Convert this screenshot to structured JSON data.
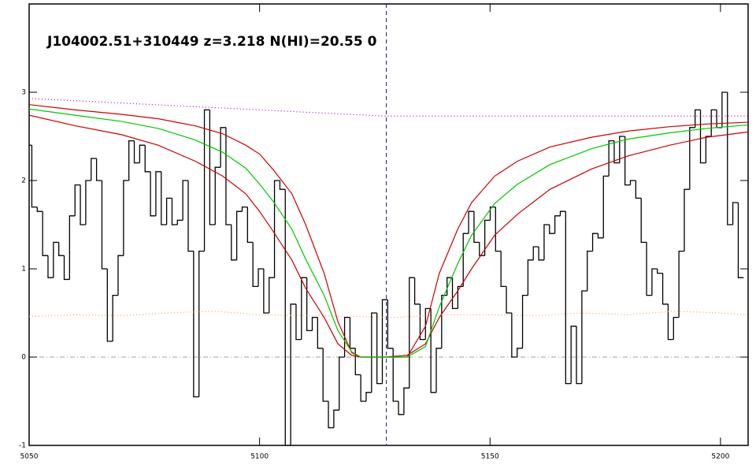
{
  "chart_data": {
    "type": "line",
    "title": "J104002.51+310449 z=3.218 N(HI)=20.55 0",
    "xlim": [
      5050,
      5206
    ],
    "ylim": [
      -1,
      4
    ],
    "xticks": [
      5050,
      5100,
      5150,
      5200
    ],
    "yticks": [
      -1,
      0,
      1,
      2,
      3
    ],
    "vline_x": 5127.5,
    "vline_color": "#1010b0",
    "hline_y": 0,
    "hline_color": "#a0a0a0",
    "series": [
      {
        "style": "step",
        "color": "#000000",
        "x": [
          5050,
          5051.17,
          5052.34,
          5053.51,
          5054.68,
          5055.85,
          5057.02,
          5058.19,
          5059.36,
          5060.53,
          5061.7,
          5062.87,
          5064.04,
          5065.21,
          5066.38,
          5067.55,
          5068.72,
          5069.89,
          5071.06,
          5072.23,
          5073.4,
          5074.57,
          5075.74,
          5076.91,
          5078.08,
          5079.25,
          5080.42,
          5081.59,
          5082.76,
          5083.93,
          5085.1,
          5086.27,
          5087.44,
          5088.61,
          5089.78,
          5090.95,
          5092.12,
          5093.29,
          5094.46,
          5095.63,
          5096.8,
          5097.97,
          5099.14,
          5100.31,
          5101.48,
          5102.65,
          5103.82,
          5104.99,
          5106.16,
          5107.33,
          5108.5,
          5109.67,
          5110.84,
          5112.01,
          5113.18,
          5114.35,
          5115.52,
          5116.69,
          5117.86,
          5119.03,
          5120.2,
          5121.37,
          5122.54,
          5123.71,
          5124.88,
          5126.05,
          5127.22,
          5128.39,
          5129.56,
          5130.73,
          5131.9,
          5133.07,
          5134.24,
          5135.41,
          5136.58,
          5137.75,
          5138.92,
          5140.09,
          5141.26,
          5142.43,
          5143.6,
          5144.77,
          5145.94,
          5147.11,
          5148.28,
          5149.45,
          5150.62,
          5151.79,
          5152.96,
          5154.13,
          5155.3,
          5156.47,
          5157.64,
          5158.81,
          5159.98,
          5161.15,
          5162.32,
          5163.49,
          5164.66,
          5165.83,
          5167,
          5168.17,
          5169.34,
          5170.51,
          5171.68,
          5172.85,
          5174.02,
          5175.19,
          5176.36,
          5177.53,
          5178.7,
          5179.87,
          5181.04,
          5182.21,
          5183.38,
          5184.55,
          5185.72,
          5186.89,
          5188.06,
          5189.23,
          5190.4,
          5191.57,
          5192.74,
          5193.91,
          5195.08,
          5196.25,
          5197.42,
          5198.59,
          5199.76,
          5200.93,
          5202.1,
          5203.27,
          5204.44
        ],
        "values": [
          2.4,
          1.7,
          1.65,
          1.15,
          0.9,
          1.3,
          1.15,
          0.88,
          1.6,
          1.95,
          1.5,
          2.0,
          2.25,
          2.0,
          1.0,
          0.18,
          0.7,
          1.15,
          2.0,
          2.45,
          2.2,
          2.4,
          2.1,
          1.6,
          2.1,
          1.5,
          1.8,
          1.5,
          1.55,
          2.0,
          1.2,
          -0.45,
          1.2,
          2.8,
          1.5,
          2.15,
          2.6,
          1.5,
          1.1,
          1.65,
          1.7,
          1.3,
          0.8,
          1.0,
          0.5,
          0.9,
          2.0,
          1.9,
          -1.0,
          0.6,
          0.2,
          0.9,
          0.3,
          0.45,
          0.1,
          -0.5,
          -0.8,
          -0.6,
          0.0,
          0.45,
          0.1,
          -0.2,
          -0.5,
          -0.4,
          0.5,
          -0.3,
          0.65,
          0.1,
          -0.5,
          -0.65,
          -0.35,
          0.9,
          0.6,
          0.2,
          0.55,
          -0.4,
          0.1,
          0.7,
          0.9,
          0.55,
          0.8,
          1.4,
          1.65,
          1.3,
          1.15,
          1.55,
          1.7,
          1.2,
          0.8,
          0.5,
          0.0,
          0.1,
          0.7,
          1.1,
          1.25,
          1.1,
          1.5,
          1.4,
          1.6,
          1.65,
          -0.3,
          0.35,
          -0.3,
          0.75,
          1.2,
          1.4,
          1.35,
          2.05,
          2.45,
          2.2,
          2.5,
          1.95,
          2.0,
          1.8,
          1.3,
          0.7,
          1.0,
          0.95,
          0.6,
          0.2,
          0.45,
          1.2,
          1.9,
          2.6,
          2.8,
          2.2,
          2.5,
          2.8,
          2.6,
          3.0,
          1.5,
          1.75,
          0.9
        ]
      },
      {
        "style": "dotted",
        "color": "#f0a060",
        "x": [
          5050,
          5060,
          5070,
          5080,
          5090,
          5100,
          5110,
          5120,
          5130,
          5140,
          5150,
          5160,
          5170,
          5180,
          5190,
          5200,
          5206
        ],
        "values": [
          0.46,
          0.48,
          0.47,
          0.5,
          0.52,
          0.48,
          0.47,
          0.46,
          0.45,
          0.48,
          0.48,
          0.47,
          0.5,
          0.48,
          0.52,
          0.5,
          0.48
        ]
      },
      {
        "style": "dotted",
        "color": "#b000c8",
        "x": [
          5050,
          5127,
          5206
        ],
        "values": [
          2.93,
          2.73,
          2.73
        ]
      },
      {
        "style": "solid",
        "color": "#cc0000",
        "x": [
          5050,
          5060,
          5070,
          5078,
          5086,
          5092,
          5097,
          5100,
          5103,
          5107,
          5110,
          5114,
          5117,
          5120,
          5122,
          5127,
          5132,
          5136,
          5139,
          5143,
          5146,
          5151,
          5156,
          5163,
          5172,
          5180,
          5189,
          5197,
          5206
        ],
        "values": [
          2.86,
          2.8,
          2.75,
          2.7,
          2.62,
          2.53,
          2.4,
          2.3,
          2.12,
          1.85,
          1.5,
          0.95,
          0.4,
          0.05,
          0,
          0,
          0,
          0.35,
          0.95,
          1.45,
          1.75,
          2.05,
          2.22,
          2.38,
          2.49,
          2.56,
          2.61,
          2.64,
          2.66
        ]
      },
      {
        "style": "solid",
        "color": "#cc0000",
        "x": [
          5050,
          5060,
          5070,
          5078,
          5086,
          5092,
          5097,
          5100,
          5103,
          5107,
          5110,
          5114,
          5117,
          5120,
          5122,
          5127,
          5132,
          5136,
          5139,
          5143,
          5146,
          5151,
          5156,
          5163,
          5172,
          5180,
          5189,
          5197,
          5206
        ],
        "values": [
          2.74,
          2.62,
          2.52,
          2.4,
          2.22,
          2.05,
          1.85,
          1.65,
          1.42,
          1.1,
          0.78,
          0.45,
          0.15,
          0.02,
          0,
          0,
          0.02,
          0.15,
          0.45,
          0.75,
          1.0,
          1.38,
          1.62,
          1.9,
          2.13,
          2.28,
          2.4,
          2.49,
          2.55
        ]
      },
      {
        "style": "solid",
        "color": "#00c800",
        "x": [
          5050,
          5060,
          5070,
          5078,
          5086,
          5092,
          5097,
          5100,
          5103,
          5107,
          5110,
          5114,
          5117,
          5120,
          5122,
          5127,
          5132,
          5136,
          5139,
          5143,
          5146,
          5151,
          5156,
          5163,
          5172,
          5180,
          5189,
          5197,
          5206
        ],
        "values": [
          2.81,
          2.74,
          2.67,
          2.59,
          2.46,
          2.32,
          2.14,
          1.96,
          1.76,
          1.45,
          1.11,
          0.7,
          0.3,
          0.06,
          0,
          0,
          0,
          0.12,
          0.57,
          1.06,
          1.38,
          1.74,
          1.96,
          2.18,
          2.36,
          2.47,
          2.54,
          2.59,
          2.63
        ]
      }
    ]
  }
}
